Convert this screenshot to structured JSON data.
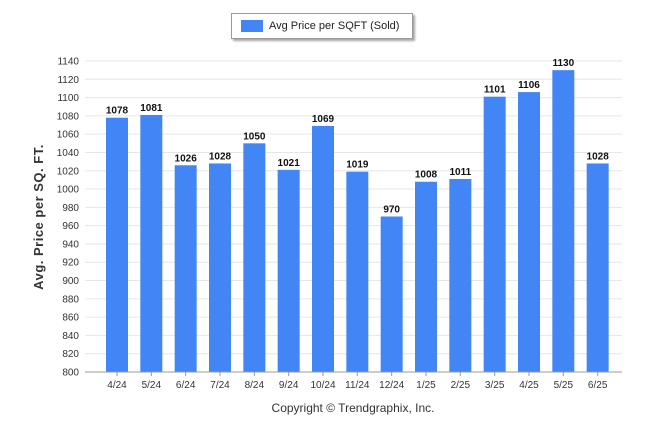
{
  "chart_data": {
    "type": "bar",
    "title": "",
    "xlabel": "",
    "ylabel": "Avg. Price per SQ. FT.",
    "legend": {
      "label": "Avg Price per SQFT (Sold)",
      "position": "top-center"
    },
    "categories": [
      "4/24",
      "5/24",
      "6/24",
      "7/24",
      "8/24",
      "9/24",
      "10/24",
      "11/24",
      "12/24",
      "1/25",
      "2/25",
      "3/25",
      "4/25",
      "5/25",
      "6/25"
    ],
    "series": [
      {
        "name": "Avg Price per SQFT (Sold)",
        "values": [
          1078,
          1081,
          1026,
          1028,
          1050,
          1021,
          1069,
          1019,
          970,
          1008,
          1011,
          1101,
          1106,
          1130,
          1028
        ]
      }
    ],
    "ylim": [
      800,
      1140
    ],
    "yticks": [
      800,
      820,
      840,
      860,
      880,
      900,
      920,
      940,
      960,
      980,
      1000,
      1020,
      1040,
      1060,
      1080,
      1100,
      1120,
      1140
    ],
    "grid": true,
    "bar_color": "#4285f4"
  },
  "footer": {
    "copyright": "Copyright © Trendgraphix, Inc."
  }
}
